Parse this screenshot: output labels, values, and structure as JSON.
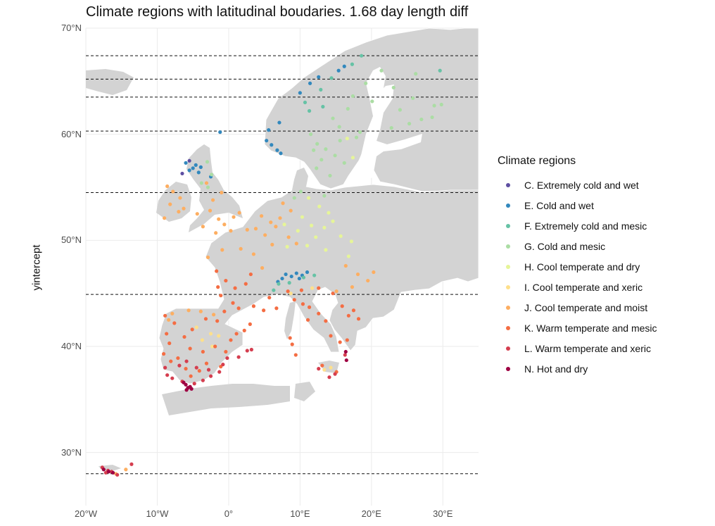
{
  "title": "Climate regions with latitudinal boudaries. 1.68 day length diff",
  "chart_data": {
    "type": "scatter",
    "title": "Climate regions with latitudinal boudaries. 1.68 day length diff",
    "xlabel": "",
    "ylabel": "yintercept",
    "xlim": [
      -20,
      35
    ],
    "ylim": [
      25,
      70
    ],
    "x_ticks": [
      "20°W",
      "10°W",
      "0°",
      "10°E",
      "20°E",
      "30°E"
    ],
    "x_tick_values": [
      -20,
      -10,
      0,
      10,
      20,
      30
    ],
    "y_ticks": [
      "30°N",
      "40°N",
      "50°N",
      "60°N",
      "70°N"
    ],
    "y_tick_values": [
      30,
      40,
      50,
      60,
      70
    ],
    "hlines": [
      67.4,
      65.2,
      63.5,
      60.3,
      54.5,
      44.9,
      28.0
    ],
    "grid": true,
    "legend_position": "right",
    "legend_title": "Climate regions",
    "series": [
      {
        "name": "C. Extremely cold and wet",
        "color": "#5e4fa2",
        "points": [
          [
            -6.5,
            56.3
          ],
          [
            -5.5,
            57.5
          ]
        ]
      },
      {
        "name": "E. Cold and wet",
        "color": "#3288bd",
        "points": [
          [
            -1.2,
            60.2
          ],
          [
            5.3,
            59.4
          ],
          [
            6.0,
            59.0
          ],
          [
            6.8,
            58.5
          ],
          [
            7.3,
            58.2
          ],
          [
            5.6,
            60.4
          ],
          [
            7.1,
            61.1
          ],
          [
            10.0,
            63.9
          ],
          [
            11.4,
            64.8
          ],
          [
            12.6,
            65.4
          ],
          [
            15.4,
            66.0
          ],
          [
            16.2,
            66.4
          ],
          [
            -5.0,
            56.8
          ],
          [
            -4.6,
            57.1
          ],
          [
            -5.5,
            56.6
          ],
          [
            -4.2,
            56.4
          ],
          [
            -3.9,
            56.9
          ],
          [
            -6.0,
            57.3
          ],
          [
            -2.5,
            56.0
          ],
          [
            8.0,
            46.8
          ],
          [
            8.8,
            46.6
          ],
          [
            9.5,
            46.9
          ],
          [
            10.3,
            46.7
          ],
          [
            7.5,
            46.4
          ],
          [
            11.0,
            47.0
          ],
          [
            6.9,
            46.1
          ],
          [
            9.9,
            46.4
          ]
        ]
      },
      {
        "name": "F. Extremely cold and mesic",
        "color": "#66c2a5",
        "points": [
          [
            18.6,
            67.4
          ],
          [
            29.6,
            66.0
          ],
          [
            10.7,
            63.0
          ],
          [
            12.9,
            64.2
          ],
          [
            14.4,
            65.3
          ],
          [
            17.3,
            66.6
          ],
          [
            8.5,
            46.0
          ],
          [
            7.0,
            45.9
          ],
          [
            10.5,
            46.5
          ],
          [
            12.0,
            46.7
          ],
          [
            6.3,
            45.3
          ],
          [
            13.2,
            62.6
          ],
          [
            11.3,
            62.2
          ]
        ]
      },
      {
        "name": "G. Cold and mesic",
        "color": "#abdda4",
        "points": [
          [
            11.5,
            60.0
          ],
          [
            12.4,
            59.1
          ],
          [
            13.6,
            58.6
          ],
          [
            14.9,
            58.0
          ],
          [
            16.2,
            57.3
          ],
          [
            17.9,
            59.7
          ],
          [
            15.5,
            60.7
          ],
          [
            16.7,
            62.4
          ],
          [
            14.6,
            61.5
          ],
          [
            17.4,
            63.6
          ],
          [
            19.2,
            64.8
          ],
          [
            21.4,
            66.0
          ],
          [
            24.0,
            62.3
          ],
          [
            25.8,
            63.4
          ],
          [
            27.0,
            61.4
          ],
          [
            28.8,
            62.7
          ],
          [
            23.1,
            64.4
          ],
          [
            26.2,
            65.7
          ],
          [
            22.8,
            60.6
          ],
          [
            25.3,
            61.0
          ],
          [
            28.5,
            61.6
          ],
          [
            12.3,
            56.8
          ],
          [
            14.2,
            56.1
          ],
          [
            13.0,
            57.6
          ],
          [
            11.9,
            58.5
          ],
          [
            -3.0,
            57.4
          ],
          [
            -2.4,
            56.2
          ],
          [
            -3.8,
            55.4
          ],
          [
            -2.9,
            55.0
          ],
          [
            9.2,
            54.0
          ],
          [
            10.1,
            54.6
          ],
          [
            13.4,
            54.2
          ],
          [
            15.6,
            59.4
          ],
          [
            18.4,
            60.2
          ],
          [
            20.1,
            63.1
          ],
          [
            29.8,
            62.8
          ]
        ]
      },
      {
        "name": "H. Cool temperate and dry",
        "color": "#e6f598",
        "points": [
          [
            11.2,
            54.0
          ],
          [
            12.7,
            53.2
          ],
          [
            14.0,
            52.6
          ],
          [
            10.3,
            52.2
          ],
          [
            11.6,
            51.4
          ],
          [
            13.4,
            51.2
          ],
          [
            14.6,
            51.8
          ],
          [
            12.2,
            50.3
          ],
          [
            9.7,
            50.9
          ],
          [
            11.0,
            49.5
          ],
          [
            15.7,
            50.4
          ],
          [
            17.2,
            49.9
          ],
          [
            8.2,
            49.4
          ],
          [
            13.6,
            49.1
          ],
          [
            16.6,
            59.6
          ],
          [
            17.4,
            57.8
          ],
          [
            7.8,
            51.5
          ],
          [
            16.8,
            48.5
          ]
        ]
      },
      {
        "name": "I. Cool temperate and xeric",
        "color": "#fee08b",
        "points": [
          [
            -3.7,
            40.6
          ],
          [
            -2.5,
            41.2
          ],
          [
            -4.5,
            41.8
          ],
          [
            -1.4,
            41.0
          ],
          [
            -2.3,
            40.0
          ],
          [
            13.4,
            37.8
          ],
          [
            14.3,
            38.0
          ],
          [
            8.7,
            45.0
          ],
          [
            11.7,
            45.5
          ]
        ]
      },
      {
        "name": "J. Cool temperate and moist",
        "color": "#fdae61",
        "points": [
          [
            -8.2,
            53.4
          ],
          [
            -7.0,
            52.7
          ],
          [
            -9.0,
            52.1
          ],
          [
            -7.8,
            54.6
          ],
          [
            -6.3,
            53.0
          ],
          [
            -2.6,
            52.8
          ],
          [
            -1.4,
            52.0
          ],
          [
            -0.6,
            51.5
          ],
          [
            0.7,
            52.2
          ],
          [
            -3.6,
            51.3
          ],
          [
            -2.2,
            53.8
          ],
          [
            -1.0,
            54.5
          ],
          [
            -3.1,
            55.4
          ],
          [
            -4.4,
            52.5
          ],
          [
            0.3,
            50.9
          ],
          [
            -1.8,
            50.7
          ],
          [
            1.5,
            52.6
          ],
          [
            4.6,
            52.3
          ],
          [
            5.9,
            51.7
          ],
          [
            7.2,
            52.1
          ],
          [
            3.8,
            51.1
          ],
          [
            5.1,
            50.5
          ],
          [
            6.6,
            51.3
          ],
          [
            8.7,
            52.8
          ],
          [
            7.6,
            53.5
          ],
          [
            2.6,
            51.0
          ],
          [
            8.4,
            50.3
          ],
          [
            9.5,
            49.7
          ],
          [
            6.1,
            49.6
          ],
          [
            1.7,
            49.2
          ],
          [
            -0.9,
            49.1
          ],
          [
            -2.9,
            48.4
          ],
          [
            3.5,
            48.7
          ],
          [
            4.7,
            47.4
          ],
          [
            16.4,
            47.6
          ],
          [
            18.1,
            46.8
          ],
          [
            19.5,
            46.2
          ],
          [
            17.3,
            45.6
          ],
          [
            15.1,
            45.2
          ],
          [
            20.3,
            47.0
          ],
          [
            -8.4,
            42.5
          ],
          [
            -7.9,
            43.1
          ],
          [
            -3.9,
            43.3
          ],
          [
            -5.6,
            43.4
          ],
          [
            -2.1,
            43.0
          ],
          [
            -14.4,
            28.4
          ],
          [
            -15.8,
            28.0
          ],
          [
            -8.6,
            55.1
          ],
          [
            -6.8,
            54.0
          ]
        ]
      },
      {
        "name": "K. Warm temperate and mesic",
        "color": "#f46d43",
        "points": [
          [
            -1.7,
            47.1
          ],
          [
            -0.4,
            46.2
          ],
          [
            0.9,
            45.5
          ],
          [
            -1.1,
            44.8
          ],
          [
            0.6,
            44.1
          ],
          [
            1.4,
            43.6
          ],
          [
            3.5,
            43.8
          ],
          [
            4.9,
            43.4
          ],
          [
            6.7,
            43.6
          ],
          [
            5.7,
            44.6
          ],
          [
            2.4,
            45.9
          ],
          [
            3.1,
            46.8
          ],
          [
            -1.5,
            45.6
          ],
          [
            -0.6,
            43.3
          ],
          [
            -8.9,
            42.9
          ],
          [
            -7.6,
            42.2
          ],
          [
            -8.7,
            41.2
          ],
          [
            -8.3,
            40.3
          ],
          [
            -9.1,
            39.3
          ],
          [
            -8.1,
            38.6
          ],
          [
            -7.1,
            38.9
          ],
          [
            -6.0,
            37.9
          ],
          [
            -5.3,
            37.2
          ],
          [
            -4.1,
            37.7
          ],
          [
            -3.1,
            38.4
          ],
          [
            -1.1,
            38.1
          ],
          [
            -0.4,
            39.5
          ],
          [
            0.3,
            40.6
          ],
          [
            1.1,
            41.2
          ],
          [
            2.2,
            41.5
          ],
          [
            3.0,
            42.1
          ],
          [
            -3.2,
            42.6
          ],
          [
            -1.6,
            42.4
          ],
          [
            -5.1,
            41.6
          ],
          [
            -6.2,
            40.9
          ],
          [
            9.2,
            44.4
          ],
          [
            8.3,
            45.2
          ],
          [
            10.4,
            44.0
          ],
          [
            11.3,
            43.7
          ],
          [
            12.6,
            43.1
          ],
          [
            13.6,
            42.4
          ],
          [
            11.1,
            42.5
          ],
          [
            14.3,
            41.0
          ],
          [
            15.6,
            40.4
          ],
          [
            16.6,
            40.6
          ],
          [
            15.1,
            37.6
          ],
          [
            13.1,
            38.2
          ],
          [
            8.9,
            40.2
          ],
          [
            9.4,
            39.2
          ],
          [
            8.6,
            40.8
          ],
          [
            16.8,
            42.9
          ],
          [
            18.2,
            42.6
          ],
          [
            17.5,
            43.4
          ],
          [
            15.9,
            43.8
          ],
          [
            14.6,
            45.0
          ],
          [
            12.6,
            45.5
          ],
          [
            10.2,
            45.3
          ],
          [
            -1.9,
            40.0
          ],
          [
            -3.6,
            39.5
          ],
          [
            -5.4,
            39.8
          ]
        ]
      },
      {
        "name": "L. Warm temperate and xeric",
        "color": "#d53e4f",
        "points": [
          [
            -8.9,
            38.0
          ],
          [
            -8.6,
            37.3
          ],
          [
            -7.9,
            37.0
          ],
          [
            -6.5,
            36.7
          ],
          [
            -4.8,
            36.5
          ],
          [
            -3.6,
            36.8
          ],
          [
            -2.5,
            37.2
          ],
          [
            -1.3,
            37.6
          ],
          [
            -0.8,
            38.3
          ],
          [
            -0.2,
            38.9
          ],
          [
            -6.9,
            38.2
          ],
          [
            -5.9,
            38.6
          ],
          [
            -4.5,
            38.0
          ],
          [
            -2.8,
            37.8
          ],
          [
            1.4,
            39.0
          ],
          [
            2.6,
            39.6
          ],
          [
            3.2,
            39.7
          ],
          [
            14.9,
            37.4
          ],
          [
            14.1,
            37.1
          ],
          [
            12.6,
            37.9
          ],
          [
            16.3,
            39.2
          ],
          [
            -17.7,
            28.6
          ],
          [
            -16.9,
            28.3
          ],
          [
            -16.4,
            28.2
          ],
          [
            -15.6,
            27.9
          ],
          [
            -13.6,
            28.9
          ],
          [
            -17.2,
            28.1
          ]
        ]
      },
      {
        "name": "N. Hot and dry",
        "color": "#9e0142",
        "points": [
          [
            -6.0,
            36.4
          ],
          [
            -5.7,
            36.1
          ],
          [
            -5.4,
            36.2
          ],
          [
            -6.3,
            36.6
          ],
          [
            -5.2,
            36.0
          ],
          [
            -5.9,
            35.9
          ],
          [
            -17.5,
            28.4
          ],
          [
            -16.8,
            28.2
          ],
          [
            -16.2,
            28.1
          ],
          [
            16.5,
            38.7
          ],
          [
            16.4,
            39.5
          ]
        ]
      }
    ]
  }
}
